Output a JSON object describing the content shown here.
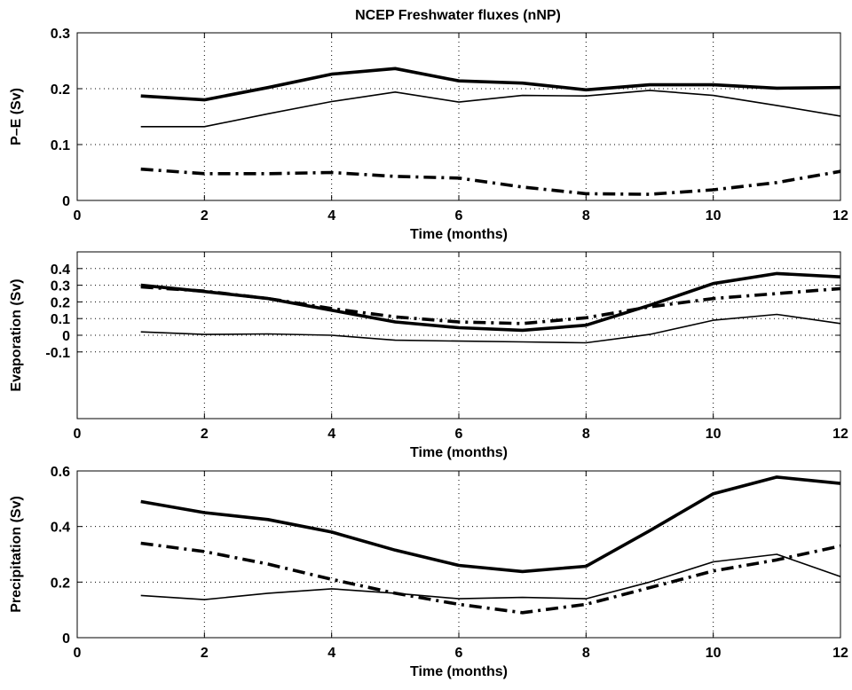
{
  "chart_data": [
    {
      "type": "line",
      "title": "NCEP Freshwater fluxes (nNP)",
      "xlabel": "Time (months)",
      "ylabel": "P–E (Sv)",
      "xlim": [
        0,
        12
      ],
      "ylim": [
        0,
        0.3
      ],
      "xticks": [
        "0",
        "2",
        "4",
        "6",
        "8",
        "10",
        "12"
      ],
      "yticks": [
        "0",
        "0.1",
        "0.2",
        "0.3"
      ],
      "grid": true,
      "x": [
        1,
        2,
        3,
        4,
        5,
        6,
        7,
        8,
        9,
        10,
        11,
        12
      ],
      "series": [
        {
          "style": "thick-solid",
          "values": [
            0.187,
            0.18,
            0.202,
            0.226,
            0.236,
            0.214,
            0.21,
            0.198,
            0.207,
            0.207,
            0.201,
            0.202
          ]
        },
        {
          "style": "thin-solid",
          "values": [
            0.132,
            0.132,
            0.155,
            0.177,
            0.194,
            0.176,
            0.188,
            0.187,
            0.197,
            0.188,
            0.17,
            0.151
          ]
        },
        {
          "style": "thick-dashdot",
          "values": [
            0.056,
            0.048,
            0.048,
            0.05,
            0.043,
            0.04,
            0.024,
            0.012,
            0.011,
            0.019,
            0.032,
            0.052
          ]
        }
      ]
    },
    {
      "type": "line",
      "title": "",
      "xlabel": "Time (months)",
      "ylabel": "Evaporation (Sv)",
      "xlim": [
        0,
        12
      ],
      "ylim": [
        -0.5,
        0.5
      ],
      "xticks": [
        "0",
        "2",
        "4",
        "6",
        "8",
        "10",
        "12"
      ],
      "yticks": [
        "-0.1",
        "0",
        "0.1",
        "0.2",
        "0.3",
        "0.4"
      ],
      "grid": true,
      "x": [
        1,
        2,
        3,
        4,
        5,
        6,
        7,
        8,
        9,
        10,
        11,
        12
      ],
      "series": [
        {
          "style": "thick-solid",
          "values": [
            0.3,
            0.262,
            0.22,
            0.15,
            0.08,
            0.045,
            0.03,
            0.06,
            0.18,
            0.31,
            0.37,
            0.35
          ]
        },
        {
          "style": "thin-solid",
          "values": [
            0.02,
            0.005,
            0.008,
            0.0,
            -0.03,
            -0.035,
            -0.04,
            -0.045,
            0.005,
            0.09,
            0.125,
            0.07
          ]
        },
        {
          "style": "thick-dashdot",
          "values": [
            0.29,
            0.265,
            0.22,
            0.16,
            0.11,
            0.08,
            0.07,
            0.105,
            0.17,
            0.22,
            0.25,
            0.28
          ]
        }
      ]
    },
    {
      "type": "line",
      "title": "",
      "xlabel": "Time (months)",
      "ylabel": "Precipitation (Sv)",
      "xlim": [
        0,
        12
      ],
      "ylim": [
        0,
        0.6
      ],
      "xticks": [
        "0",
        "2",
        "4",
        "6",
        "8",
        "10",
        "12"
      ],
      "yticks": [
        "0",
        "0.2",
        "0.4",
        "0.6"
      ],
      "grid": true,
      "x": [
        1,
        2,
        3,
        4,
        5,
        6,
        7,
        8,
        9,
        10,
        11,
        12
      ],
      "series": [
        {
          "style": "thick-solid",
          "values": [
            0.49,
            0.45,
            0.425,
            0.38,
            0.315,
            0.26,
            0.238,
            0.257,
            0.385,
            0.518,
            0.578,
            0.555
          ]
        },
        {
          "style": "thin-solid",
          "values": [
            0.152,
            0.137,
            0.16,
            0.176,
            0.16,
            0.14,
            0.145,
            0.14,
            0.2,
            0.273,
            0.3,
            0.22
          ]
        },
        {
          "style": "thick-dashdot",
          "values": [
            0.34,
            0.31,
            0.265,
            0.21,
            0.16,
            0.12,
            0.09,
            0.12,
            0.18,
            0.24,
            0.28,
            0.33
          ]
        }
      ]
    }
  ]
}
